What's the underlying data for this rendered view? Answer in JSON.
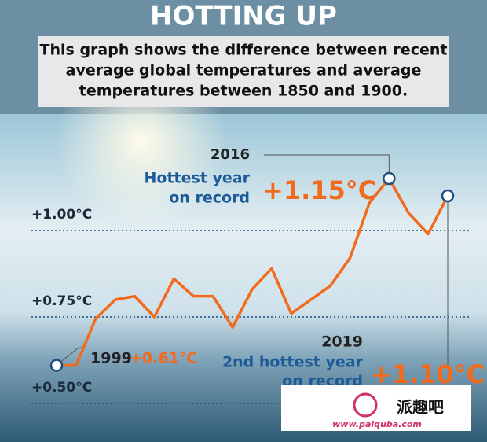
{
  "chart_data": {
    "type": "line",
    "title": "HOTTING UP",
    "subtitle": [
      "This graph shows the difference between recent",
      "average global temperatures and average",
      "temperatures between 1850 and 1900."
    ],
    "categories": [
      "1999",
      null,
      null,
      null,
      null,
      null,
      null,
      null,
      null,
      null,
      null,
      null,
      null,
      null,
      null,
      null,
      null,
      "2016",
      null,
      null,
      "2019"
    ],
    "values": [
      0.61,
      0.61,
      0.745,
      0.8,
      0.81,
      0.75,
      0.86,
      0.81,
      0.81,
      0.72,
      0.83,
      0.89,
      0.76,
      0.8,
      0.84,
      0.92,
      1.08,
      1.15,
      1.05,
      0.99,
      1.1
    ],
    "value_labels": [
      "+0.61°C",
      null,
      null,
      null,
      null,
      null,
      null,
      null,
      null,
      null,
      null,
      null,
      null,
      null,
      null,
      null,
      null,
      "+1.15°C",
      null,
      null,
      "+1.10°C"
    ],
    "color": "#f26b1d",
    "ylim": [
      0.4,
      1.3
    ],
    "yticks": [
      {
        "value": 0.5,
        "label": "+0.50°C"
      },
      {
        "value": 0.75,
        "label": "+0.75°C"
      },
      {
        "value": 1.0,
        "label": "+1.00°C"
      }
    ],
    "grid": true,
    "annotations": [
      "Hottest year",
      "on record",
      "2nd hottest year",
      "on record"
    ],
    "watermark": [
      "派趣吧",
      "www.paiquba.com"
    ]
  }
}
